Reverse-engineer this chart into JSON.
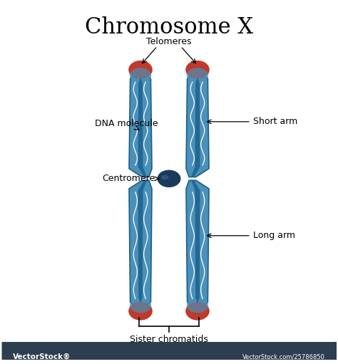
{
  "title": "Chromosome X",
  "title_fontsize": 22,
  "bg_color": "#ffffff",
  "labels": {
    "telomeres": "Telomeres",
    "dna_molecule": "DNA molecule",
    "centromere": "Centromere",
    "short_arm": "Short arm",
    "long_arm": "Long arm",
    "sister_chromatids": "Sister chromatids"
  },
  "colors": {
    "chromosome_blue_outer": "#4a90b8",
    "chromosome_blue_inner": "#1a5f8a",
    "chromosome_blue_light": "#7ab8d4",
    "telomere_red": "#c0392b",
    "telomere_red_light": "#e74c3c",
    "centromere_dark": "#1a3a5c",
    "dna_white": "#ffffff",
    "shadow_blue": "#2980b9",
    "bottom_bar": "#2c3e50",
    "vectorstock_gray": "#888888"
  },
  "fig_width": 4.74,
  "fig_height": 5.11,
  "dpi": 100
}
